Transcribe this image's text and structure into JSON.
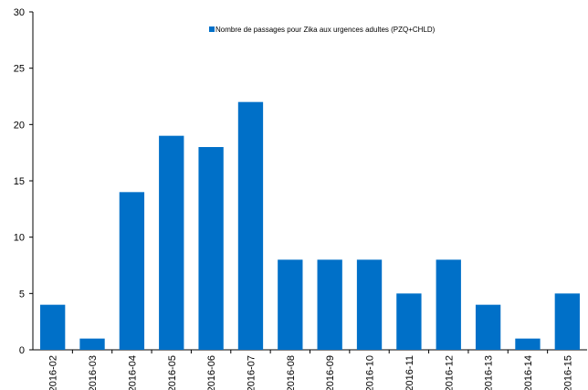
{
  "chart_data": {
    "type": "bar",
    "categories": [
      "2016-02",
      "2016-03",
      "2016-04",
      "2016-05",
      "2016-06",
      "2016-07",
      "2016-08",
      "2016-09",
      "2016-10",
      "2016-11",
      "2016-12",
      "2016-13",
      "2016-14",
      "2016-15"
    ],
    "series": [
      {
        "name": "Nombre de passages  pour Zika aux urgences adultes  (PZQ+CHLD)",
        "values": [
          4,
          1,
          14,
          19,
          18,
          22,
          8,
          8,
          8,
          5,
          8,
          4,
          1,
          5
        ],
        "color": "#0070C8"
      }
    ],
    "ylim": [
      0,
      30
    ],
    "yticks": [
      0,
      5,
      10,
      15,
      20,
      25,
      30
    ],
    "grid": false,
    "legend_position": "top-center"
  }
}
